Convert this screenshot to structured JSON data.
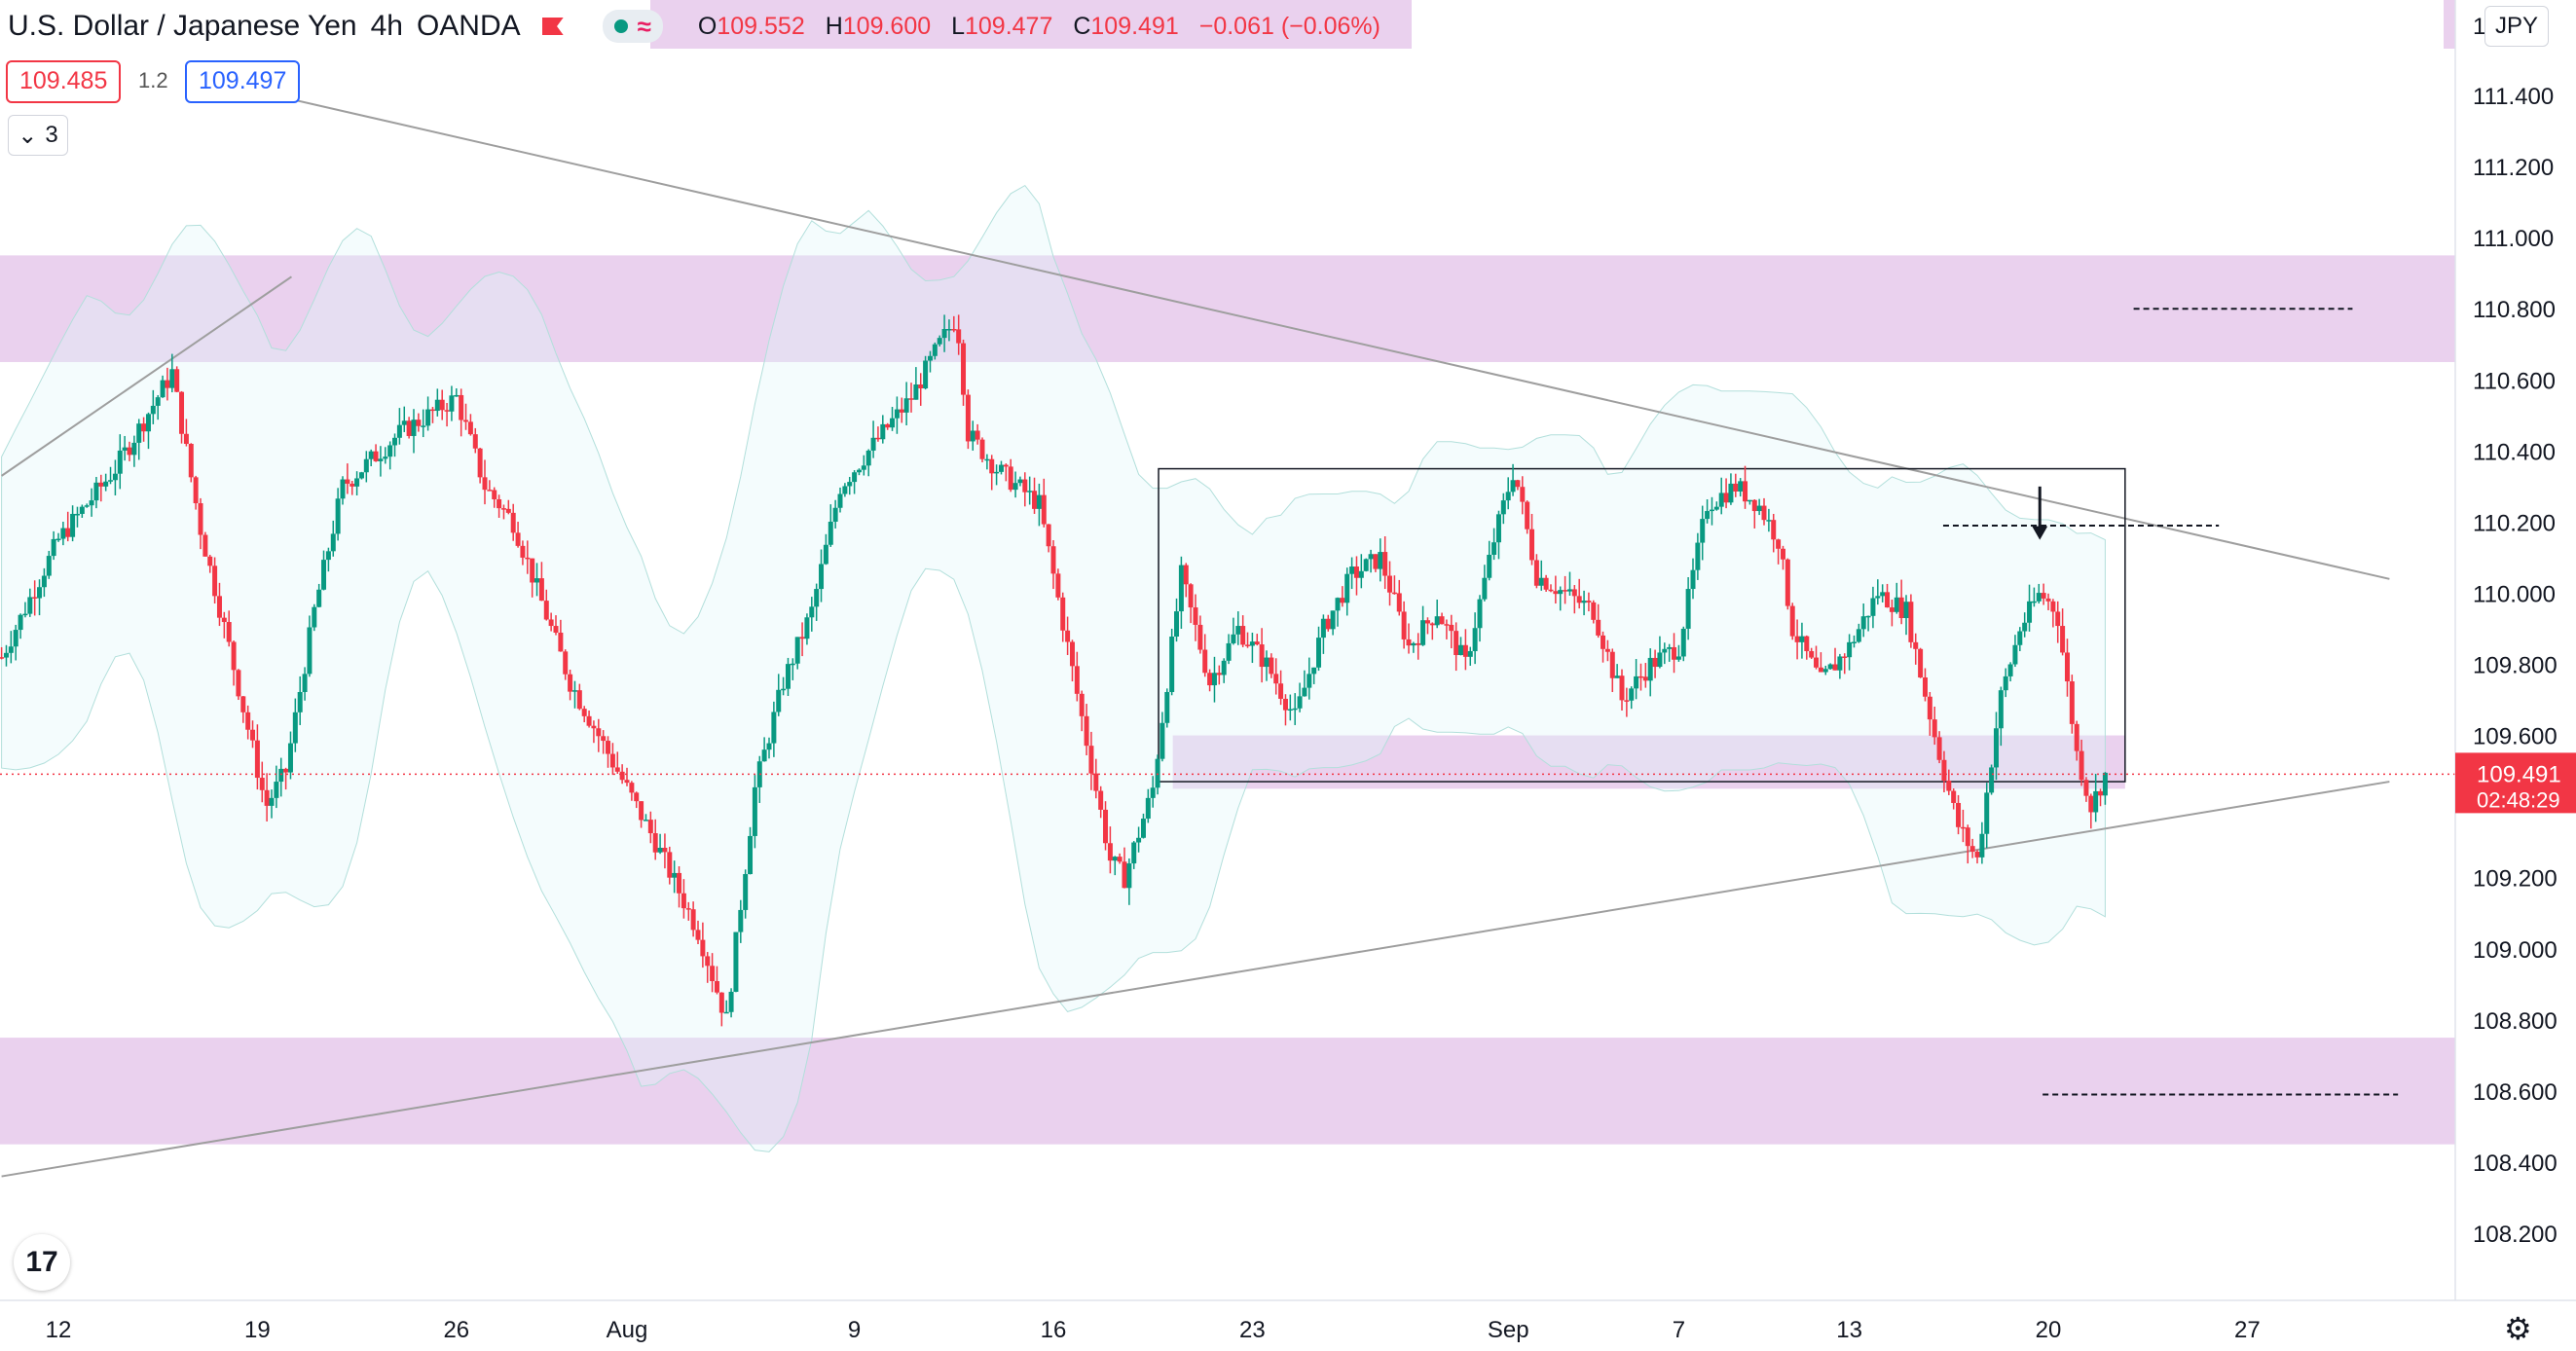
{
  "header": {
    "title": "U.S. Dollar / Japanese Yen",
    "interval": "4h",
    "broker": "OANDA",
    "ohlc": {
      "open": "109.552",
      "high": "109.600",
      "low": "109.477",
      "close": "109.491",
      "change": "−0.061 (−0.06%)"
    },
    "ohlc_keys": {
      "open": "O",
      "high": "H",
      "low": "L",
      "close": "C"
    }
  },
  "trade": {
    "bid": "109.485",
    "spread": "1.2",
    "ask": "109.497"
  },
  "indicators_toggle": {
    "count": "3"
  },
  "currency": {
    "lead": "1",
    "label": "JPY"
  },
  "price_axis": {
    "ticks": [
      "111.400",
      "111.200",
      "111.000",
      "110.800",
      "110.600",
      "110.400",
      "110.200",
      "110.000",
      "109.800",
      "109.600",
      "109.200",
      "109.000",
      "108.800",
      "108.600",
      "108.400",
      "108.200"
    ],
    "last_price": "109.491",
    "countdown": "02:48:29"
  },
  "time_axis": {
    "labels": [
      {
        "text": "12",
        "day": 0
      },
      {
        "text": "19",
        "day": 7
      },
      {
        "text": "26",
        "day": 14
      },
      {
        "text": "Aug",
        "day": 20
      },
      {
        "text": "9",
        "day": 28
      },
      {
        "text": "16",
        "day": 35
      },
      {
        "text": "23",
        "day": 42
      },
      {
        "text": "Sep",
        "day": 51
      },
      {
        "text": "7",
        "day": 57
      },
      {
        "text": "13",
        "day": 63
      },
      {
        "text": "20",
        "day": 70
      },
      {
        "text": "27",
        "day": 77
      }
    ]
  },
  "colors": {
    "up": "#089981",
    "down": "#f23645",
    "zone": "#e1bee7",
    "band": "#e0f7fa",
    "trend": "#9e9e9e",
    "last": "#f23645"
  },
  "chart_data": {
    "type": "candlestick",
    "symbol": "USD/JPY",
    "timeframe": "4h",
    "ylim": [
      108.0,
      111.55
    ],
    "xlim_days": [
      -2,
      82
    ],
    "zones": [
      {
        "from": 110.65,
        "to": 110.95
      },
      {
        "from": 109.45,
        "to": 109.6
      },
      {
        "from": 108.45,
        "to": 108.75
      }
    ],
    "range_box": {
      "day_start": 38.7,
      "day_end": 72.7,
      "high": 110.35,
      "low": 109.47
    },
    "trendlines": [
      {
        "d1": 6.5,
        "p1": 111.42,
        "d2": 82.0,
        "p2": 110.04
      },
      {
        "d1": -2.0,
        "p1": 108.36,
        "d2": 82.0,
        "p2": 109.47
      },
      {
        "d1": -2.0,
        "p1": 110.33,
        "d2": 8.2,
        "p2": 110.89
      }
    ],
    "target_lines": [
      {
        "d1": 73.0,
        "d2": 80.7,
        "price": 110.8
      },
      {
        "d1": 66.3,
        "d2": 76.0,
        "price": 110.19
      },
      {
        "d1": 69.8,
        "d2": 82.3,
        "price": 108.59
      }
    ],
    "arrow": {
      "day": 69.7,
      "from": 110.3,
      "to": 110.15
    },
    "last_price": 109.491,
    "candles": []
  }
}
